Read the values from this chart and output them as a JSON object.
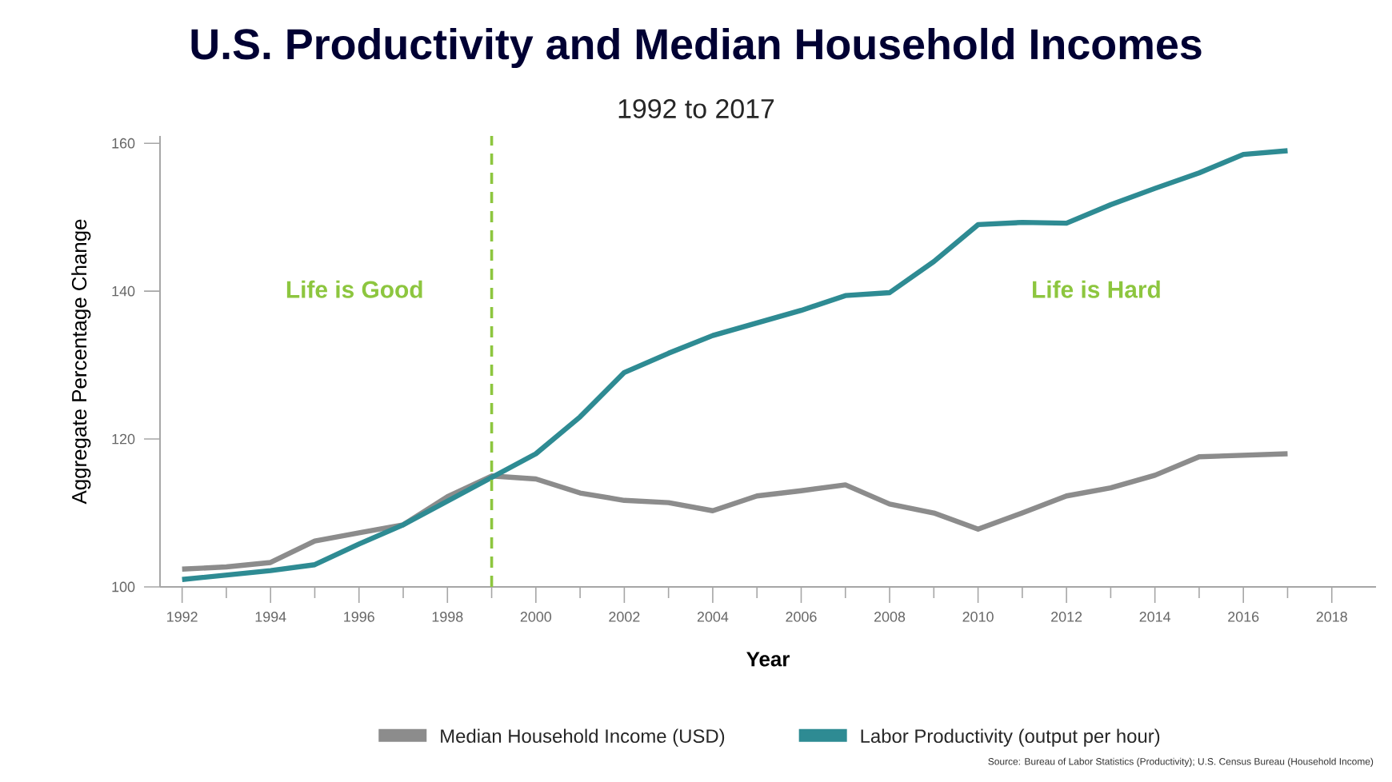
{
  "chart_data": {
    "type": "line",
    "title": "U.S. Productivity and Median Household Incomes",
    "subtitle": "1992 to 2017",
    "xlabel": "Year",
    "ylabel": "Aggregate Percentage Change",
    "x": [
      1992,
      1993,
      1994,
      1995,
      1996,
      1997,
      1998,
      1999,
      2000,
      2001,
      2002,
      2003,
      2004,
      2005,
      2006,
      2007,
      2008,
      2009,
      2010,
      2011,
      2012,
      2013,
      2014,
      2015,
      2016,
      2017
    ],
    "series": [
      {
        "name": "Median Household Income (USD)",
        "color": "#8c8c8c",
        "values": [
          102.4,
          102.7,
          103.3,
          106.2,
          107.3,
          108.4,
          112.2,
          115,
          114.6,
          112.7,
          111.7,
          111.4,
          110.3,
          112.3,
          113,
          113.8,
          111.2,
          110,
          107.8,
          110,
          112.3,
          113.4,
          115.1,
          117.6,
          117.8,
          118
        ]
      },
      {
        "name": "Labor Productivity (output per hour)",
        "color": "#2e8b93",
        "values": [
          101,
          101.6,
          102.2,
          103,
          105.8,
          108.4,
          111.6,
          114.8,
          118,
          123,
          129,
          131.6,
          134,
          135.7,
          137.4,
          139.4,
          139.8,
          144,
          149,
          149.3,
          149.2,
          151.7,
          153.9,
          156,
          158.5,
          159
        ]
      }
    ],
    "xlim": [
      1991.5,
      2019
    ],
    "ylim": [
      100,
      161
    ],
    "xticks": [
      1992,
      1994,
      1996,
      1998,
      2000,
      2002,
      2004,
      2006,
      2008,
      2010,
      2012,
      2014,
      2016,
      2018
    ],
    "yticks": [
      100,
      120,
      140,
      160
    ],
    "ref_lines": [
      {
        "axis": "x",
        "value": 1999,
        "color": "#8dc63f",
        "line_style": "dashed"
      }
    ],
    "annotations": [
      "Life is Good",
      "Life is Hard",
      "Source: Bureau of Labor Statistics (Productivity); U.S. Census Bureau (Household Income)"
    ],
    "legend": "bottom",
    "grid": false,
    "marker": "none",
    "line_style": "solid"
  }
}
